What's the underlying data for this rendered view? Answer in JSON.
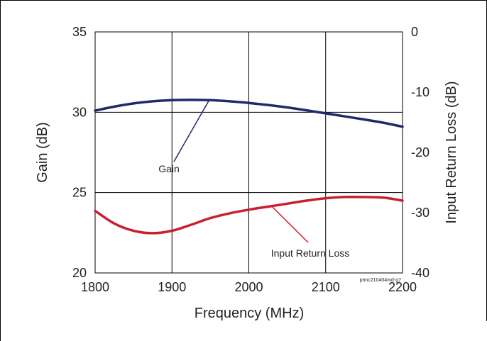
{
  "chart_data": {
    "type": "line",
    "xlabel": "Frequency (MHz)",
    "ylabel_left": "Gain (dB)",
    "ylabel_right": "Input Return Loss (dB)",
    "xlim": [
      1800,
      2200
    ],
    "ylim_left": [
      20,
      35
    ],
    "ylim_right": [
      -40,
      0
    ],
    "x_ticks": [
      1800,
      1900,
      2000,
      2100,
      2200
    ],
    "x_tick_labels": [
      "1800",
      "1900",
      "2000",
      "2100",
      "2200"
    ],
    "y_left_ticks": [
      20,
      25,
      30,
      35
    ],
    "y_left_tick_labels": [
      "20",
      "25",
      "30",
      "35"
    ],
    "y_right_ticks": [
      -40,
      -30,
      -20,
      -10,
      0
    ],
    "y_right_tick_labels": [
      "-40",
      "-30",
      "-20",
      "-10",
      "0"
    ],
    "grid": true,
    "series": [
      {
        "annotation": "Gain",
        "axis": "left",
        "color": "#1f2a6b",
        "x": [
          1800,
          1825,
          1850,
          1875,
          1900,
          1925,
          1950,
          1975,
          2000,
          2025,
          2050,
          2075,
          2100,
          2125,
          2150,
          2175,
          2200
        ],
        "values": [
          30.1,
          30.35,
          30.55,
          30.68,
          30.75,
          30.77,
          30.75,
          30.68,
          30.58,
          30.45,
          30.3,
          30.12,
          29.93,
          29.74,
          29.55,
          29.35,
          29.1
        ]
      },
      {
        "annotation": "Input Return Loss",
        "axis": "right",
        "color": "#c8202f",
        "x": [
          1800,
          1825,
          1850,
          1875,
          1900,
          1925,
          1950,
          1975,
          2000,
          2025,
          2050,
          2075,
          2100,
          2125,
          2150,
          2175,
          2200
        ],
        "values": [
          -29.7,
          -31.8,
          -33.0,
          -33.4,
          -33.0,
          -32.0,
          -30.9,
          -30.1,
          -29.5,
          -29.0,
          -28.5,
          -28.0,
          -27.6,
          -27.4,
          -27.4,
          -27.5,
          -28.0
        ]
      }
    ],
    "annotations": {
      "gain_label": "Gain",
      "irl_label": "Input Return Loss",
      "part_code": "ptmc210404md-g7"
    }
  }
}
